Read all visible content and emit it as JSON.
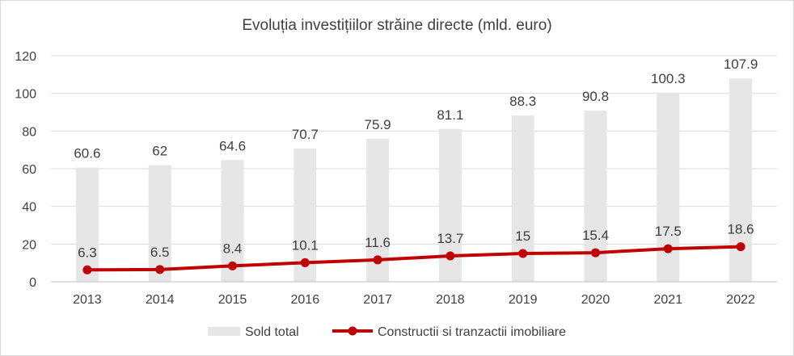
{
  "chart_data": {
    "type": "bar",
    "title": "Evoluția investițiilor străine directe (mld. euro)",
    "xlabel": "",
    "ylabel": "",
    "ylim": [
      0,
      120
    ],
    "yticks": [
      0,
      20,
      40,
      60,
      80,
      100,
      120
    ],
    "grid": true,
    "legend_position": "bottom",
    "categories": [
      "2013",
      "2014",
      "2015",
      "2016",
      "2017",
      "2018",
      "2019",
      "2020",
      "2021",
      "2022"
    ],
    "series": [
      {
        "name": "Sold total",
        "type": "bar",
        "color": "#e6e6e6",
        "values": [
          60.6,
          62,
          64.6,
          70.7,
          75.9,
          81.1,
          88.3,
          90.8,
          100.3,
          107.9
        ],
        "labels": [
          "60.6",
          "62",
          "64.6",
          "70.7",
          "75.9",
          "81.1",
          "88.3",
          "90.8",
          "100.3",
          "107.9"
        ]
      },
      {
        "name": "Constructii si tranzactii imobiliare",
        "type": "line",
        "color": "#c00000",
        "values": [
          6.3,
          6.5,
          8.4,
          10.1,
          11.6,
          13.7,
          15,
          15.4,
          17.5,
          18.6
        ],
        "labels": [
          "6.3",
          "6.5",
          "8.4",
          "10.1",
          "11.6",
          "13.7",
          "15",
          "15.4",
          "17.5",
          "18.6"
        ]
      }
    ]
  }
}
